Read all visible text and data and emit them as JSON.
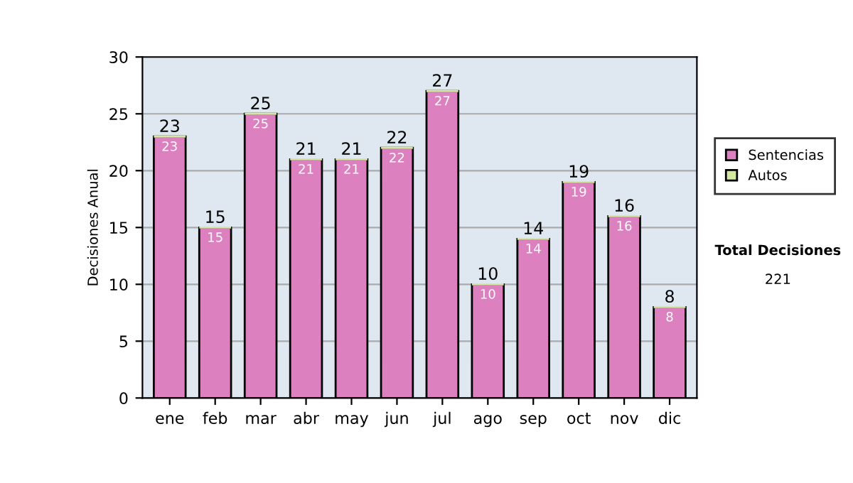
{
  "chart_data": {
    "type": "bar",
    "stacked": true,
    "ylabel": "Decisiones Anual",
    "categories": [
      "ene",
      "feb",
      "mar",
      "abr",
      "may",
      "jun",
      "jul",
      "ago",
      "sep",
      "oct",
      "nov",
      "dic"
    ],
    "series": [
      {
        "name": "Sentencias",
        "color": "#dd80c0",
        "values": [
          23,
          15,
          25,
          21,
          21,
          22,
          27,
          10,
          14,
          19,
          16,
          8
        ],
        "value_labels": [
          "23",
          "15",
          "25",
          "21",
          "21",
          "22",
          "27",
          "10",
          "14",
          "19",
          "16",
          "8"
        ]
      },
      {
        "name": "Autos",
        "color": "#d4e8a0",
        "values": [
          0,
          0,
          0,
          0,
          0,
          0,
          0,
          0,
          0,
          0,
          0,
          0
        ]
      }
    ],
    "totals": [
      "23",
      "15",
      "25",
      "21",
      "21",
      "22",
      "27",
      "10",
      "14",
      "19",
      "16",
      "8"
    ],
    "ylim": [
      0,
      30
    ],
    "yticks": [
      0,
      5,
      10,
      15,
      20,
      25,
      30
    ],
    "grid": "y",
    "legend": "right",
    "annotations": [
      "Total Decisiones",
      "221"
    ]
  }
}
